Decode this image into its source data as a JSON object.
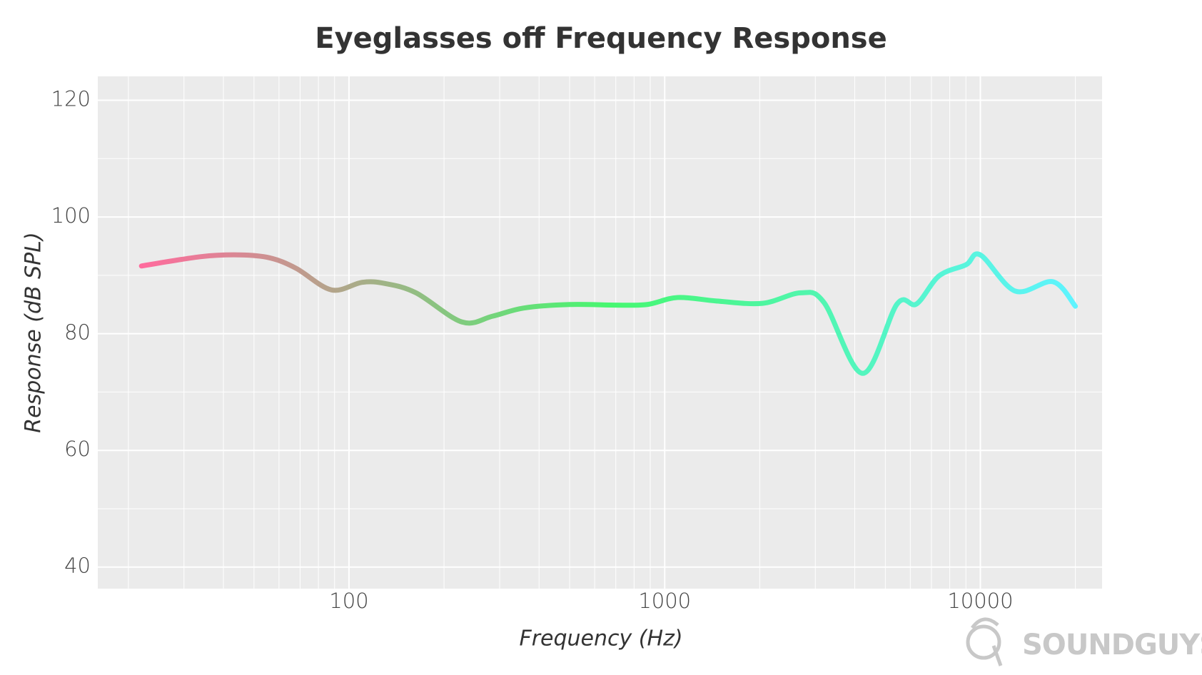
{
  "chart_data": {
    "type": "line",
    "title": "Eyeglasses off Frequency Response",
    "x_label": "Frequency (Hz)",
    "y_label": "Response (dB SPL)",
    "x": [
      22,
      34,
      45,
      56,
      68,
      88,
      110,
      130,
      163,
      228,
      285,
      358,
      500,
      700,
      880,
      1100,
      1460,
      2040,
      2700,
      3200,
      4240,
      5450,
      6280,
      7400,
      9000,
      10000,
      12900,
      17000,
      20000
    ],
    "values": [
      91.6,
      93.2,
      93.5,
      93.0,
      91.2,
      87.5,
      88.8,
      88.6,
      87.0,
      82.0,
      83.0,
      84.4,
      85.0,
      84.9,
      85.0,
      86.2,
      85.6,
      85.2,
      87.0,
      85.3,
      73.2,
      85.1,
      85.1,
      89.9,
      91.8,
      93.5,
      87.3,
      88.9,
      84.7
    ],
    "gradient": [
      "#ff6b9d",
      "#46f770",
      "#5ef4ff"
    ],
    "xscale": "log",
    "xlim": [
      16,
      24300
    ],
    "xticks": [
      100,
      1000,
      10000
    ],
    "ylim": [
      36.3,
      124.1
    ],
    "yticks": [
      40,
      60,
      80,
      100,
      120
    ],
    "grid": true
  },
  "watermark": "SOUNDGUYS"
}
